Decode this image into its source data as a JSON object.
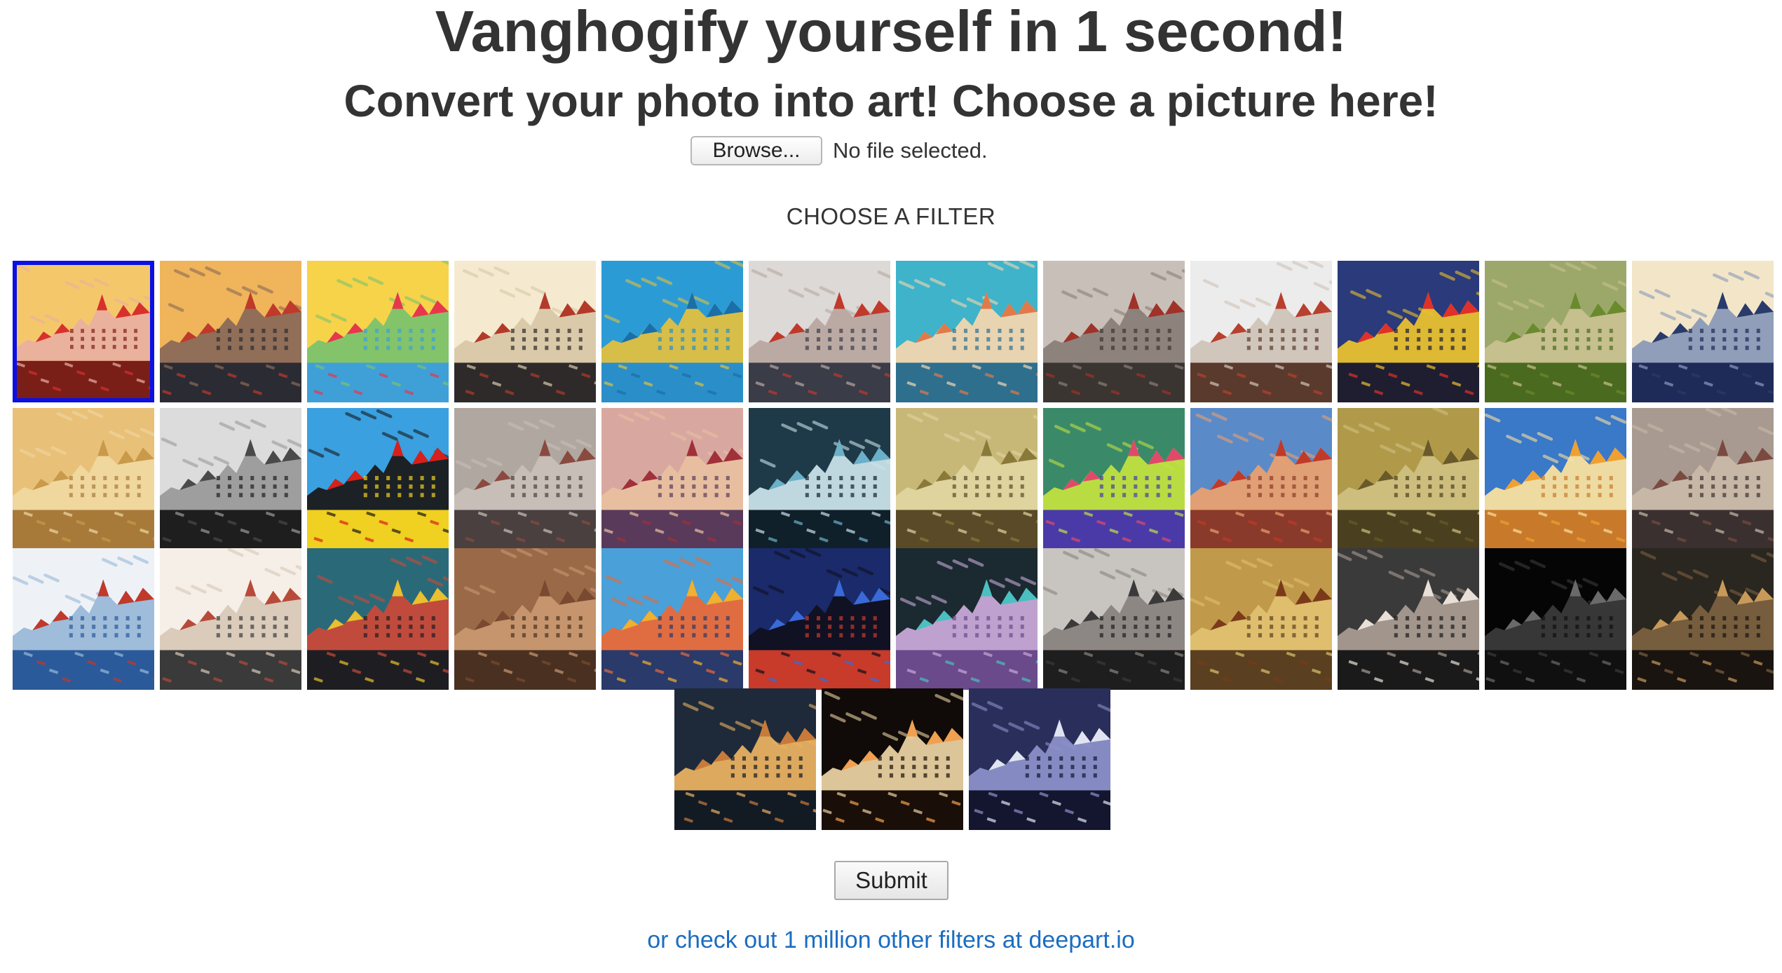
{
  "header": {
    "title": "Vanghogify yourself in 1 second!",
    "subtitle": "Convert your photo into art! Choose a picture here!"
  },
  "upload": {
    "browse_label": "Browse...",
    "status": "No file selected."
  },
  "filters": {
    "heading": "CHOOSE A FILTER",
    "selected_index": 0,
    "items": [
      {
        "icon": "filter-thumbnail-1",
        "sky": "#f4c86a",
        "accent": "#d8302a",
        "water": "#7a1e18",
        "tint": "#e9b0a0"
      },
      {
        "icon": "filter-thumbnail-2",
        "sky": "#f0b45a",
        "accent": "#c0392b",
        "water": "#2b2b33",
        "tint": "#8a6a58"
      },
      {
        "icon": "filter-thumbnail-3",
        "sky": "#f7d34a",
        "accent": "#e8374d",
        "water": "#3fa0d8",
        "tint": "#7cc36b"
      },
      {
        "icon": "filter-thumbnail-4",
        "sky": "#f5ead0",
        "accent": "#b33a2a",
        "water": "#2e2a2a",
        "tint": "#d8c8a8"
      },
      {
        "icon": "filter-thumbnail-5",
        "sky": "#2b9bd6",
        "accent": "#1a6fa8",
        "water": "#2a8ec8",
        "tint": "#e0c040"
      },
      {
        "icon": "filter-thumbnail-6",
        "sky": "#dcd9d6",
        "accent": "#c0392b",
        "water": "#3a3c48",
        "tint": "#b8a8a0"
      },
      {
        "icon": "filter-thumbnail-7",
        "sky": "#3eb3c9",
        "accent": "#e07a4a",
        "water": "#2e6f8e",
        "tint": "#f2d6b0"
      },
      {
        "icon": "filter-thumbnail-8",
        "sky": "#c8c0b8",
        "accent": "#a0322a",
        "water": "#3a3530",
        "tint": "#8a8078"
      },
      {
        "icon": "filter-thumbnail-9",
        "sky": "#ececec",
        "accent": "#b8402e",
        "water": "#5a3a2c",
        "tint": "#d0c4b8"
      },
      {
        "icon": "filter-thumbnail-10",
        "sky": "#2a3a7a",
        "accent": "#e0302a",
        "water": "#1e1e30",
        "tint": "#e8c030"
      },
      {
        "icon": "filter-thumbnail-11",
        "sky": "#9ca86a",
        "accent": "#6a8a2e",
        "water": "#4a6a20",
        "tint": "#c8c090"
      },
      {
        "icon": "filter-thumbnail-12",
        "sky": "#f3e6c8",
        "accent": "#2a3a6a",
        "water": "#1e2a58",
        "tint": "#8a9ab8"
      },
      {
        "icon": "filter-thumbnail-13",
        "sky": "#e8c078",
        "accent": "#c89a4a",
        "water": "#a87a3a",
        "tint": "#f0d8a0"
      },
      {
        "icon": "filter-thumbnail-14",
        "sky": "#dcdcdc",
        "accent": "#4a4a4a",
        "water": "#1e1e1e",
        "tint": "#9a9a9a"
      },
      {
        "icon": "filter-thumbnail-15",
        "sky": "#3aa0e0",
        "accent": "#d8201a",
        "water": "#f0d020",
        "tint": "#1a1a1a"
      },
      {
        "icon": "filter-thumbnail-16",
        "sky": "#b0a8a0",
        "accent": "#8a4a40",
        "water": "#4a4040",
        "tint": "#c8c0b8"
      },
      {
        "icon": "filter-thumbnail-17",
        "sky": "#d8a8a0",
        "accent": "#a0303a",
        "water": "#5a3a5a",
        "tint": "#e8c0a0"
      },
      {
        "icon": "filter-thumbnail-18",
        "sky": "#1e3a48",
        "accent": "#6ab0c8",
        "water": "#10202a",
        "tint": "#c8e0e8"
      },
      {
        "icon": "filter-thumbnail-19",
        "sky": "#c8b878",
        "accent": "#8a7a3a",
        "water": "#5a4a28",
        "tint": "#e0d4a0"
      },
      {
        "icon": "filter-thumbnail-20",
        "sky": "#3a8a6a",
        "accent": "#e04a6a",
        "water": "#4a3aa8",
        "tint": "#c0e040"
      },
      {
        "icon": "filter-thumbnail-21",
        "sky": "#5a8ac8",
        "accent": "#c03a2a",
        "water": "#8a3a2a",
        "tint": "#e8a070"
      },
      {
        "icon": "filter-thumbnail-22",
        "sky": "#b09a4a",
        "accent": "#6a5a2a",
        "water": "#4a4020",
        "tint": "#d0c080"
      },
      {
        "icon": "filter-thumbnail-23",
        "sky": "#3a78c8",
        "accent": "#f0a030",
        "water": "#c87a2a",
        "tint": "#f8e0a0"
      },
      {
        "icon": "filter-thumbnail-24",
        "sky": "#a89a90",
        "accent": "#7a4a40",
        "water": "#3a3030",
        "tint": "#c8b8a8"
      },
      {
        "icon": "filter-thumbnail-25",
        "sky": "#eef2f6",
        "accent": "#c0392b",
        "water": "#2a5a9a",
        "tint": "#9ab8d8"
      },
      {
        "icon": "filter-thumbnail-26",
        "sky": "#f6efe8",
        "accent": "#b84a3a",
        "water": "#3a3a3a",
        "tint": "#d8c8b8"
      },
      {
        "icon": "filter-thumbnail-27",
        "sky": "#2a6a78",
        "accent": "#e8c030",
        "water": "#1e1e22",
        "tint": "#c84a3a"
      },
      {
        "icon": "filter-thumbnail-28",
        "sky": "#9a6a48",
        "accent": "#7a4a30",
        "water": "#4a3020",
        "tint": "#c89870"
      },
      {
        "icon": "filter-thumbnail-29",
        "sky": "#4aa0d8",
        "accent": "#f0b030",
        "water": "#2a3a6a",
        "tint": "#e86a3a"
      },
      {
        "icon": "filter-thumbnail-30",
        "sky": "#1a2a6a",
        "accent": "#3a6ad8",
        "water": "#c83a2a",
        "tint": "#101020"
      },
      {
        "icon": "filter-thumbnail-31",
        "sky": "#1a2a30",
        "accent": "#4ac0c0",
        "water": "#6a4a8a",
        "tint": "#c8a8d8"
      },
      {
        "icon": "filter-thumbnail-32",
        "sky": "#c8c4c0",
        "accent": "#3a3a3a",
        "water": "#1e1e1e",
        "tint": "#8a8480"
      },
      {
        "icon": "filter-thumbnail-33",
        "sky": "#c09a4a",
        "accent": "#7a3a1a",
        "water": "#5a4020",
        "tint": "#e0c070"
      },
      {
        "icon": "filter-thumbnail-34",
        "sky": "#3a3a3a",
        "accent": "#e8e0d8",
        "water": "#1a1a1a",
        "tint": "#a89a90"
      },
      {
        "icon": "filter-thumbnail-35",
        "sky": "#050505",
        "accent": "#6a6a6a",
        "water": "#101010",
        "tint": "#3a3a3a"
      },
      {
        "icon": "filter-thumbnail-36",
        "sky": "#2a2620",
        "accent": "#c89a5a",
        "water": "#1a1410",
        "tint": "#7a6040"
      },
      {
        "icon": "filter-thumbnail-37",
        "sky": "#1e2a3a",
        "accent": "#c87a3a",
        "water": "#121a24",
        "tint": "#e8b060"
      },
      {
        "icon": "filter-thumbnail-38",
        "sky": "#100a08",
        "accent": "#f0a050",
        "water": "#1a0e08",
        "tint": "#e8d0a0"
      },
      {
        "icon": "filter-thumbnail-39",
        "sky": "#2a2e5a",
        "accent": "#e0e4f0",
        "water": "#141630",
        "tint": "#8a90c8"
      }
    ]
  },
  "actions": {
    "submit_label": "Submit",
    "more_filters_link": "or check out 1 million other filters at deepart.io"
  },
  "colors": {
    "selected_border": "#0a10e6",
    "link": "#1b6dc1",
    "text": "#333333"
  }
}
